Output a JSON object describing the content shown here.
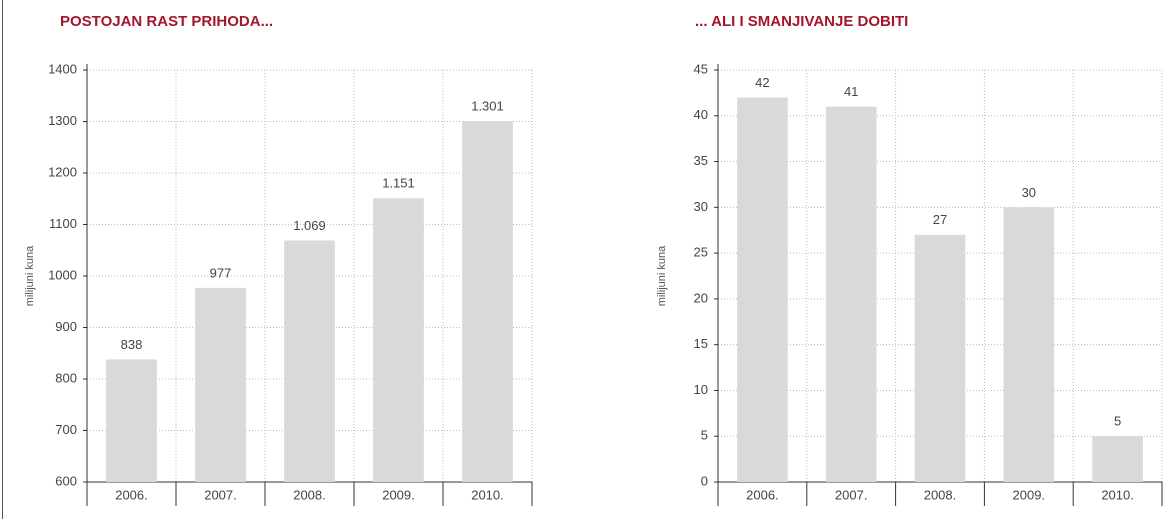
{
  "chart_data": [
    {
      "type": "bar",
      "title": "POSTOJAN RAST PRIHODA...",
      "y_label": "milijuni kuna",
      "categories": [
        "2006.",
        "2007.",
        "2008.",
        "2009.",
        "2010."
      ],
      "values": [
        838,
        977,
        1069,
        1151,
        1301
      ],
      "value_labels": [
        "838",
        "977",
        "1.069",
        "1.151",
        "1.301"
      ],
      "color": "#d9d9d9",
      "ylim": [
        600,
        1400
      ],
      "yticks": [
        600,
        700,
        800,
        900,
        1000,
        1100,
        1200,
        1300,
        1400
      ],
      "grid": true
    },
    {
      "type": "bar",
      "title": "... ALI I SMANJIVANJE DOBITI",
      "y_label": "milijuni kuna",
      "categories": [
        "2006.",
        "2007.",
        "2008.",
        "2009.",
        "2010."
      ],
      "values": [
        42,
        41,
        27,
        30,
        5
      ],
      "color": "#d9d9d9",
      "ylim": [
        0,
        45
      ],
      "yticks": [
        0,
        5,
        10,
        15,
        20,
        25,
        30,
        35,
        40,
        45
      ],
      "grid": true
    }
  ]
}
